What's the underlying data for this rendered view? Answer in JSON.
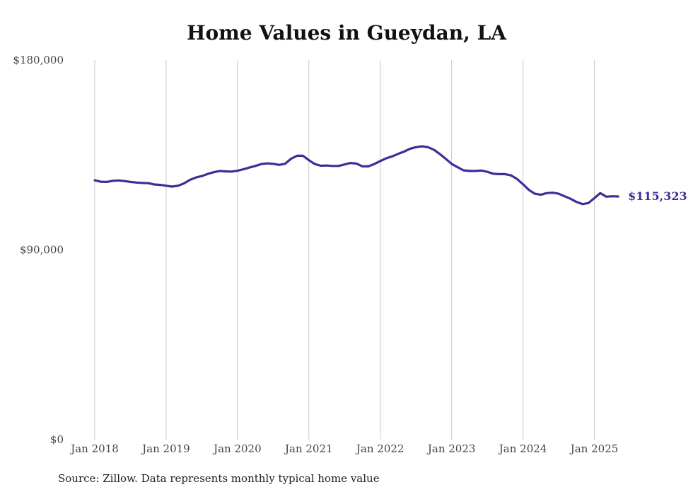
{
  "title": "Home Values in Gueydan, LA",
  "source": "Source: Zillow. Data represents monthly typical home value",
  "colors": {
    "line": "#3a2f96",
    "grid": "#c8c8c8",
    "text": "#444444"
  },
  "chart_data": {
    "type": "line",
    "title": "Home Values in Gueydan, LA",
    "xlabel": "",
    "ylabel": "",
    "ylim": [
      0,
      180000
    ],
    "y_ticks": [
      0,
      90000,
      180000
    ],
    "y_tick_labels": [
      "$0",
      "$90,000",
      "$180,000"
    ],
    "x_ticks": [
      "2018-01",
      "2019-01",
      "2020-01",
      "2021-01",
      "2022-01",
      "2023-01",
      "2024-01",
      "2025-01"
    ],
    "x_tick_labels": [
      "Jan 2018",
      "Jan 2019",
      "Jan 2020",
      "Jan 2021",
      "Jan 2022",
      "Jan 2023",
      "Jan 2024",
      "Jan 2025"
    ],
    "grid": "vertical",
    "end_label": "$115,323",
    "series": [
      {
        "x": [
          "2018-01",
          "2018-02",
          "2018-03",
          "2018-04",
          "2018-05",
          "2018-06",
          "2018-07",
          "2018-08",
          "2018-09",
          "2018-10",
          "2018-11",
          "2018-12",
          "2019-01",
          "2019-02",
          "2019-03",
          "2019-04",
          "2019-05",
          "2019-06",
          "2019-07",
          "2019-08",
          "2019-09",
          "2019-10",
          "2019-11",
          "2019-12",
          "2020-01",
          "2020-02",
          "2020-03",
          "2020-04",
          "2020-05",
          "2020-06",
          "2020-07",
          "2020-08",
          "2020-09",
          "2020-10",
          "2020-11",
          "2020-12",
          "2021-01",
          "2021-02",
          "2021-03",
          "2021-04",
          "2021-05",
          "2021-06",
          "2021-07",
          "2021-08",
          "2021-09",
          "2021-10",
          "2021-11",
          "2021-12",
          "2022-01",
          "2022-02",
          "2022-03",
          "2022-04",
          "2022-05",
          "2022-06",
          "2022-07",
          "2022-08",
          "2022-09",
          "2022-10",
          "2022-11",
          "2022-12",
          "2023-01",
          "2023-02",
          "2023-03",
          "2023-04",
          "2023-05",
          "2023-06",
          "2023-07",
          "2023-08",
          "2023-09",
          "2023-10",
          "2023-11",
          "2023-12",
          "2024-01",
          "2024-02",
          "2024-03",
          "2024-04",
          "2024-05",
          "2024-06",
          "2024-07",
          "2024-08",
          "2024-09",
          "2024-10",
          "2024-11",
          "2024-12",
          "2025-01",
          "2025-02",
          "2025-03",
          "2025-04",
          "2025-05"
        ],
        "values": [
          123000,
          122300,
          122200,
          122700,
          122900,
          122600,
          122200,
          121900,
          121700,
          121600,
          121000,
          120800,
          120400,
          120000,
          120400,
          121500,
          123200,
          124300,
          125000,
          126000,
          126800,
          127400,
          127200,
          127100,
          127500,
          128200,
          129000,
          129800,
          130700,
          131000,
          130800,
          130300,
          130800,
          133200,
          134600,
          134600,
          132500,
          130700,
          129900,
          130000,
          129800,
          129800,
          130500,
          131200,
          130900,
          129600,
          129600,
          130700,
          132100,
          133400,
          134300,
          135500,
          136600,
          137900,
          138700,
          139100,
          138700,
          137500,
          135500,
          133200,
          130800,
          129200,
          127700,
          127400,
          127400,
          127600,
          127000,
          126100,
          125900,
          125900,
          125300,
          123600,
          121100,
          118400,
          116600,
          116100,
          116900,
          117100,
          116600,
          115400,
          114200,
          112700,
          111700,
          112200,
          114500,
          116900,
          115200,
          115400,
          115323
        ]
      }
    ]
  }
}
